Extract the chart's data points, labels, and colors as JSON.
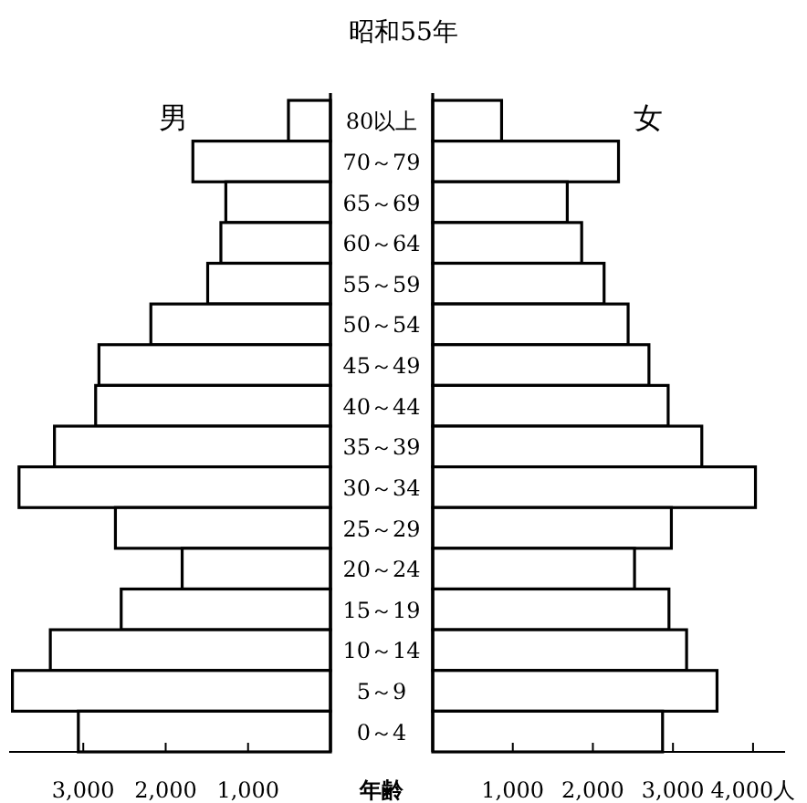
{
  "chart_data": [
    {
      "type": "bar",
      "orientation": "horizontal",
      "title": "昭和55年",
      "ylabel": "年齢",
      "annotations": [
        "男"
      ],
      "categories": [
        "80以上",
        "70～79",
        "65～69",
        "60～64",
        "55～59",
        "50～54",
        "45～49",
        "40～44",
        "35～39",
        "30～34",
        "25～29",
        "20～24",
        "15～19",
        "10～14",
        "5～9",
        "0～4"
      ],
      "values": [
        510,
        1670,
        1270,
        1330,
        1490,
        2180,
        2810,
        2850,
        3350,
        3780,
        2610,
        1800,
        2540,
        3400,
        3860,
        3060
      ],
      "color": "#ffffff",
      "xlim": [
        3900,
        0
      ],
      "xticks": [
        {
          "value": 3000,
          "label": "3,000"
        },
        {
          "value": 2000,
          "label": "2,000"
        },
        {
          "value": 1000,
          "label": "1,000"
        }
      ]
    },
    {
      "type": "bar",
      "orientation": "horizontal",
      "annotations": [
        "女"
      ],
      "tick_labels": "x",
      "values": [
        860,
        2320,
        1680,
        1860,
        2140,
        2440,
        2700,
        2940,
        3360,
        4030,
        2980,
        2520,
        2950,
        3170,
        3550,
        2870
      ],
      "color": "#ffffff",
      "xlim": [
        0,
        4400
      ],
      "xticks": [
        {
          "value": 1000,
          "label": "1,000"
        },
        {
          "value": 2000,
          "label": "2,000"
        },
        {
          "value": 3000,
          "label": "3,000"
        },
        {
          "value": 4000,
          "label": "4,000人"
        }
      ]
    }
  ]
}
